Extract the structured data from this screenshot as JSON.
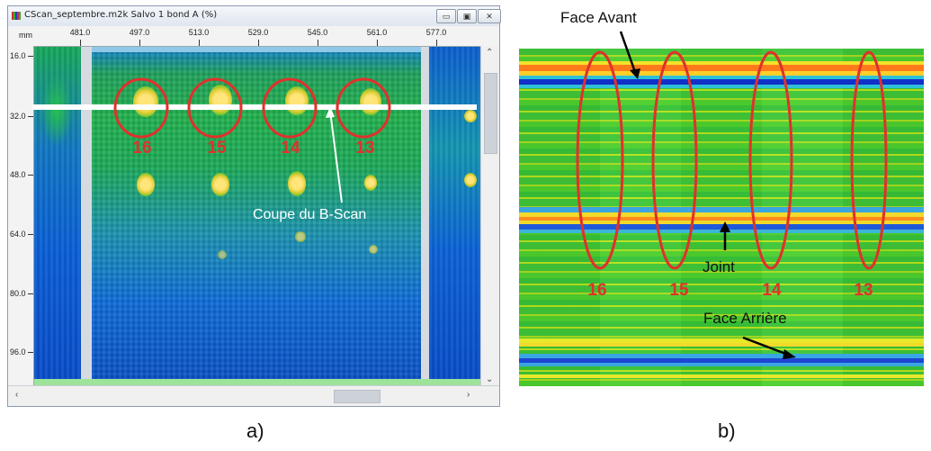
{
  "window": {
    "title": "CScan_septembre.m2k Salvo 1 bond A (%)",
    "minimize": "▭",
    "restore": "▣",
    "close": "✕"
  },
  "ruler": {
    "unit": "mm",
    "x_ticks": [
      "481.0",
      "497.0",
      "513.0",
      "529.0",
      "545.0",
      "561.0",
      "577.0"
    ],
    "y_ticks": [
      "16.0",
      "32.0",
      "48.0",
      "64.0",
      "80.0",
      "96.0"
    ]
  },
  "cscan": {
    "indent_numbers": [
      "16",
      "15",
      "14",
      "13"
    ],
    "callout": "Coupe du B-Scan"
  },
  "bscan": {
    "front_face": "Face Avant",
    "joint": "Joint",
    "back_face": "Face Arrière",
    "indent_numbers": [
      "16",
      "15",
      "14",
      "13"
    ]
  },
  "captions": {
    "a": "a)",
    "b": "b)"
  },
  "colors": {
    "mark_red": "#e0312c",
    "scan_blue": "#0a54c8",
    "scan_green": "#43ce2e",
    "hotspot_yellow": "#ffe57a",
    "cut_line": "#ffffff"
  }
}
